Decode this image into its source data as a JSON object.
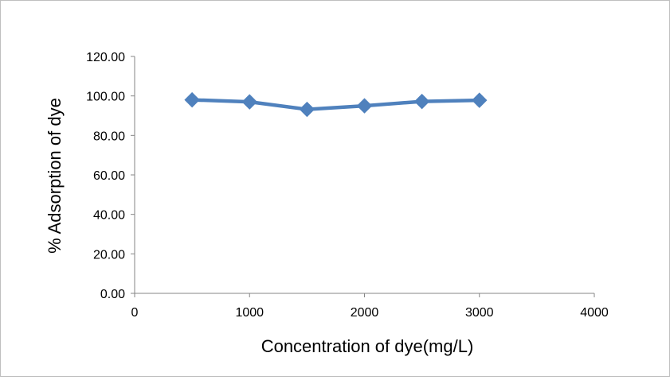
{
  "chart_data": {
    "type": "line",
    "title": "",
    "xlabel": "Concentration of dye(mg/L)",
    "ylabel": "% Adsorption of dye",
    "xlim": [
      0,
      4000
    ],
    "ylim": [
      0,
      120
    ],
    "x_ticks": [
      "0",
      "1000",
      "2000",
      "3000",
      "4000"
    ],
    "y_ticks": [
      "0.00",
      "20.00",
      "40.00",
      "60.00",
      "80.00",
      "100.00",
      "120.00"
    ],
    "grid": false,
    "legend": "none",
    "series": [
      {
        "color": "#4f81bd",
        "marker": "diamond",
        "x": [
          500,
          1000,
          1500,
          2000,
          2500,
          3000
        ],
        "y": [
          98.0,
          97.0,
          93.2,
          95.0,
          97.2,
          97.8
        ]
      }
    ]
  }
}
